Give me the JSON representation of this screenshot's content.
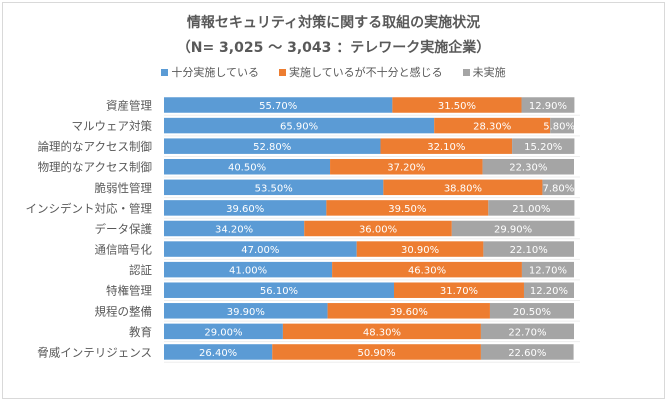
{
  "chart_data": {
    "type": "bar",
    "orientation": "horizontal",
    "stacked": "percent",
    "title": "情報セキュリティ対策に関する取組の実施状況",
    "subtitle": "（N= 3,025 ～ 3,043 ：テレワーク実施企業）",
    "legend_position": "top",
    "categories": [
      "資産管理",
      "マルウェア対策",
      "論理的なアクセス制御",
      "物理的なアクセス制御",
      "脆弱性管理",
      "インシデント対応・管理",
      "データ保護",
      "通信暗号化",
      "認証",
      "特権管理",
      "規程の整備",
      "教育",
      "脅威インテリジェンス"
    ],
    "series": [
      {
        "name": "十分実施している",
        "color": "#5b9bd5",
        "values": [
          55.7,
          65.9,
          52.8,
          40.5,
          53.5,
          39.6,
          34.2,
          47.0,
          41.0,
          56.1,
          39.9,
          29.0,
          26.4
        ]
      },
      {
        "name": "実施しているが不十分と感じる",
        "color": "#ed7d31",
        "values": [
          31.5,
          28.3,
          32.1,
          37.2,
          38.8,
          39.5,
          36.0,
          30.9,
          46.3,
          31.7,
          39.6,
          48.3,
          50.9
        ]
      },
      {
        "name": "未実施",
        "color": "#a5a5a5",
        "values": [
          12.9,
          5.8,
          15.2,
          22.3,
          7.8,
          21.0,
          29.9,
          22.1,
          12.7,
          12.2,
          20.5,
          22.7,
          22.6
        ]
      }
    ],
    "xlim": [
      0,
      100
    ],
    "data_label_format": "0.00%"
  }
}
